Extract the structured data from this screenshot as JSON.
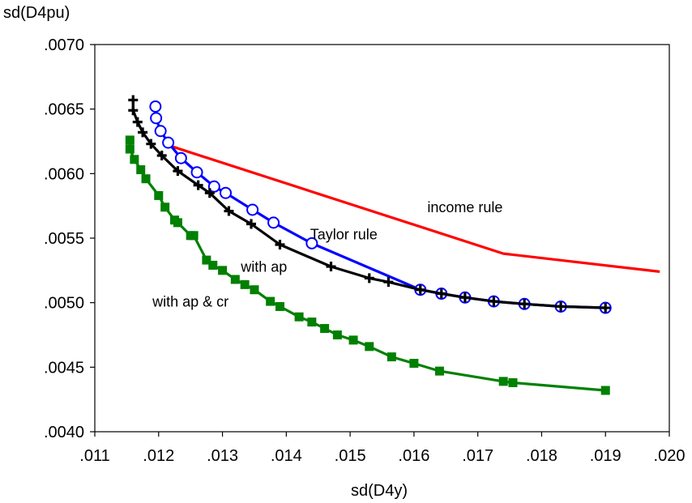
{
  "chart_data": {
    "type": "line",
    "title": "",
    "xlabel": "sd(D4y)",
    "ylabel": "sd(D4pu)",
    "xlim": [
      0.011,
      0.02
    ],
    "ylim": [
      0.004,
      0.007
    ],
    "xticks": [
      0.011,
      0.012,
      0.013,
      0.014,
      0.015,
      0.016,
      0.017,
      0.018,
      0.019,
      0.02
    ],
    "xtick_labels": [
      ".011",
      ".012",
      ".013",
      ".014",
      ".015",
      ".016",
      ".017",
      ".018",
      ".019",
      ".020"
    ],
    "yticks": [
      0.004,
      0.0045,
      0.005,
      0.0055,
      0.006,
      0.0065,
      0.007
    ],
    "ytick_labels": [
      ".0040",
      ".0045",
      ".0050",
      ".0055",
      ".0060",
      ".0065",
      ".0070"
    ],
    "grid": false,
    "legend": "none",
    "series": [
      {
        "name": "income rule",
        "color": "#ff0000",
        "marker": "none",
        "points": [
          [
            0.01215,
            0.00622
          ],
          [
            0.0174,
            0.00538
          ],
          [
            0.01985,
            0.00524
          ]
        ]
      },
      {
        "name": "Taylor rule",
        "color": "#0000ff",
        "marker": "circle",
        "points": [
          [
            0.01195,
            0.00652
          ],
          [
            0.01196,
            0.00643
          ],
          [
            0.01203,
            0.00633
          ],
          [
            0.01215,
            0.00624
          ],
          [
            0.01235,
            0.00612
          ],
          [
            0.0126,
            0.00601
          ],
          [
            0.01287,
            0.0059
          ],
          [
            0.01305,
            0.00585
          ],
          [
            0.01347,
            0.00572
          ],
          [
            0.0138,
            0.00562
          ],
          [
            0.0144,
            0.00546
          ],
          [
            0.0161,
            0.0051
          ],
          [
            0.01643,
            0.00507
          ],
          [
            0.0168,
            0.00504
          ],
          [
            0.01725,
            0.00501
          ],
          [
            0.01773,
            0.00499
          ],
          [
            0.0183,
            0.00497
          ],
          [
            0.019,
            0.00496
          ]
        ]
      },
      {
        "name": "with ap",
        "color": "#000000",
        "marker": "plus",
        "points": [
          [
            0.0116,
            0.00657
          ],
          [
            0.0116,
            0.00649
          ],
          [
            0.01167,
            0.0064
          ],
          [
            0.01175,
            0.00632
          ],
          [
            0.01188,
            0.00623
          ],
          [
            0.01205,
            0.00614
          ],
          [
            0.0123,
            0.00602
          ],
          [
            0.01262,
            0.00591
          ],
          [
            0.0128,
            0.00585
          ],
          [
            0.0131,
            0.00571
          ],
          [
            0.01345,
            0.00561
          ],
          [
            0.0139,
            0.00545
          ],
          [
            0.0147,
            0.00528
          ],
          [
            0.0153,
            0.00519
          ],
          [
            0.0156,
            0.00516
          ],
          [
            0.0161,
            0.0051
          ],
          [
            0.01643,
            0.00507
          ],
          [
            0.0168,
            0.00504
          ],
          [
            0.01725,
            0.00501
          ],
          [
            0.01773,
            0.00499
          ],
          [
            0.0183,
            0.00497
          ],
          [
            0.019,
            0.00496
          ]
        ]
      },
      {
        "name": "with ap & cr",
        "color": "#008000",
        "marker": "square",
        "points": [
          [
            0.01155,
            0.00626
          ],
          [
            0.01155,
            0.00619
          ],
          [
            0.01162,
            0.00611
          ],
          [
            0.01172,
            0.00603
          ],
          [
            0.0118,
            0.00596
          ],
          [
            0.012,
            0.00583
          ],
          [
            0.0121,
            0.00574
          ],
          [
            0.01225,
            0.00564
          ],
          [
            0.0123,
            0.00562
          ],
          [
            0.0125,
            0.00552
          ],
          [
            0.01255,
            0.00552
          ],
          [
            0.01275,
            0.00533
          ],
          [
            0.01285,
            0.00529
          ],
          [
            0.013,
            0.00525
          ],
          [
            0.0132,
            0.00518
          ],
          [
            0.01335,
            0.00514
          ],
          [
            0.0135,
            0.0051
          ],
          [
            0.01375,
            0.00501
          ],
          [
            0.0139,
            0.00497
          ],
          [
            0.0142,
            0.00489
          ],
          [
            0.0144,
            0.00485
          ],
          [
            0.0146,
            0.0048
          ],
          [
            0.0148,
            0.00475
          ],
          [
            0.01505,
            0.00471
          ],
          [
            0.0153,
            0.00466
          ],
          [
            0.01565,
            0.00458
          ],
          [
            0.016,
            0.00453
          ],
          [
            0.0164,
            0.00447
          ],
          [
            0.0174,
            0.00439
          ],
          [
            0.01755,
            0.00438
          ],
          [
            0.019,
            0.00432
          ]
        ]
      }
    ],
    "annotations": [
      {
        "text": "income rule",
        "x": 0.0168,
        "y": 0.0057
      },
      {
        "text": "Taylor rule",
        "x": 0.0149,
        "y": 0.00549
      },
      {
        "text": "with ap",
        "x": 0.01365,
        "y": 0.00524
      },
      {
        "text": "with ap & cr",
        "x": 0.0125,
        "y": 0.00497
      }
    ]
  }
}
